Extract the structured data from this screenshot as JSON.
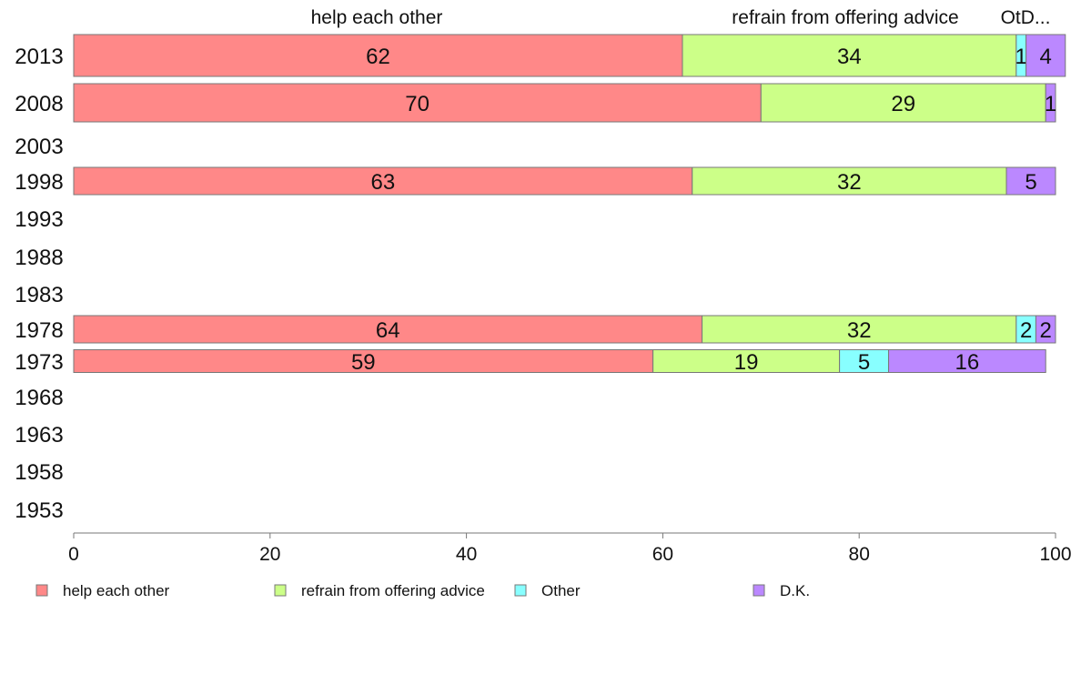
{
  "chart_data": {
    "type": "bar",
    "orientation": "horizontal",
    "stacked": true,
    "categories": [
      "2013",
      "2008",
      "2003",
      "1998",
      "1993",
      "1988",
      "1983",
      "1978",
      "1973",
      "1968",
      "1963",
      "1958",
      "1953"
    ],
    "series": [
      {
        "name": "help each other",
        "color": "#ff8888",
        "values": [
          62,
          70,
          null,
          63,
          null,
          null,
          null,
          64,
          59,
          null,
          null,
          null,
          null
        ],
        "labels": [
          "62",
          "70",
          "",
          "63",
          "",
          "",
          "",
          "64",
          "59",
          "",
          "",
          "",
          ""
        ]
      },
      {
        "name": "refrain from offering advice",
        "color": "#ccff88",
        "values": [
          34,
          29,
          null,
          32,
          null,
          null,
          null,
          32,
          19,
          null,
          null,
          null,
          null
        ],
        "labels": [
          "34",
          "29",
          "",
          "32",
          "",
          "",
          "",
          "32",
          "19",
          "",
          "",
          "",
          ""
        ]
      },
      {
        "name": "Other",
        "color": "#88ffff",
        "values": [
          1,
          0,
          null,
          0,
          null,
          null,
          null,
          2,
          5,
          null,
          null,
          null,
          null
        ],
        "labels": [
          "1",
          "",
          "",
          "",
          "",
          "",
          "",
          "2",
          "5",
          "",
          "",
          "",
          ""
        ]
      },
      {
        "name": "D.K.",
        "color": "#bb88ff",
        "values": [
          4,
          1,
          null,
          5,
          null,
          null,
          null,
          2,
          16,
          null,
          null,
          null,
          null
        ],
        "labels": [
          "4",
          "1",
          "",
          "5",
          "",
          "",
          "",
          "2",
          "16",
          "",
          "",
          "",
          ""
        ]
      }
    ],
    "top_labels": [
      "help each other",
      "refrain from offering advice",
      "OtD..."
    ],
    "xlim": [
      0,
      100
    ],
    "xticks": [
      "0",
      "20",
      "40",
      "60",
      "80",
      "100"
    ],
    "grid": false,
    "legend_position": "bottom"
  }
}
